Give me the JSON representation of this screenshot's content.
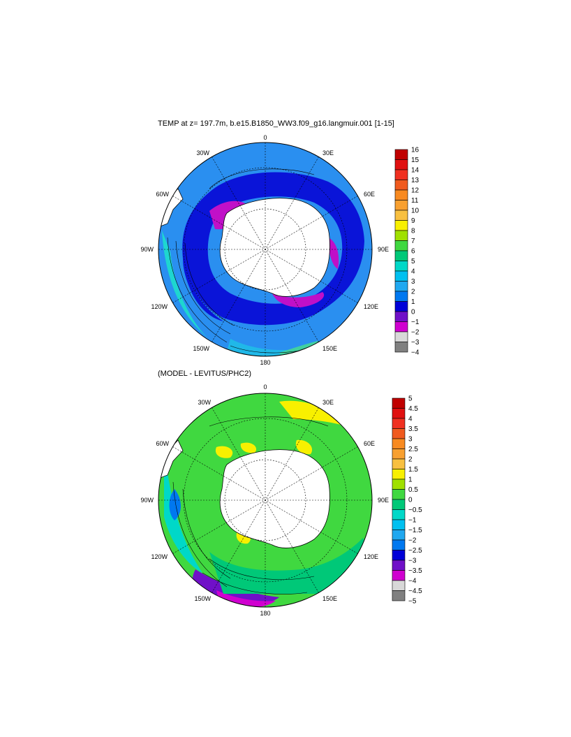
{
  "maps": [
    {
      "title": "TEMP at z= 197.7m, b.e15.B1850_WW3.f09_g16.langmuir.001 [1-15]",
      "lon_labels": [
        "0",
        "30E",
        "60E",
        "90E",
        "120E",
        "150E",
        "180",
        "150W",
        "120W",
        "90W",
        "60W",
        "30W"
      ],
      "colorbar": {
        "labels": [
          "16",
          "15",
          "14",
          "13",
          "12",
          "11",
          "10",
          "9",
          "8",
          "7",
          "6",
          "5",
          "4",
          "3",
          "2",
          "1",
          "0",
          "−1",
          "−2",
          "−3",
          "−4"
        ],
        "colors": [
          "#c00000",
          "#e01010",
          "#f03020",
          "#f05a1e",
          "#f88a20",
          "#f8a030",
          "#f8c040",
          "#f8f000",
          "#a0e000",
          "#40d840",
          "#00c878",
          "#00d8c8",
          "#00c0f0",
          "#20a8f0",
          "#0078f0",
          "#0000d8",
          "#7010c8",
          "#d000d0",
          "#d8d8d8",
          "#808080"
        ]
      }
    },
    {
      "title": "(MODEL - LEVITUS/PHC2)",
      "lon_labels": [
        "0",
        "30E",
        "60E",
        "90E",
        "120E",
        "150E",
        "180",
        "150W",
        "120W",
        "90W",
        "60W",
        "30W"
      ],
      "colorbar": {
        "labels": [
          "5",
          "4.5",
          "4",
          "3.5",
          "3",
          "2.5",
          "2",
          "1.5",
          "1",
          "0.5",
          "0",
          "−0.5",
          "−1",
          "−1.5",
          "−2",
          "−2.5",
          "−3",
          "−3.5",
          "−4",
          "−4.5",
          "−5"
        ],
        "colors": [
          "#c00000",
          "#e01010",
          "#f03020",
          "#f05a1e",
          "#f88a20",
          "#f8a030",
          "#f8c040",
          "#f8f000",
          "#a0e000",
          "#40d840",
          "#00c878",
          "#00d8c8",
          "#00c0f0",
          "#20a8f0",
          "#0078f0",
          "#0000d8",
          "#7010c8",
          "#d000d0",
          "#d8d8d8",
          "#808080"
        ]
      }
    }
  ]
}
